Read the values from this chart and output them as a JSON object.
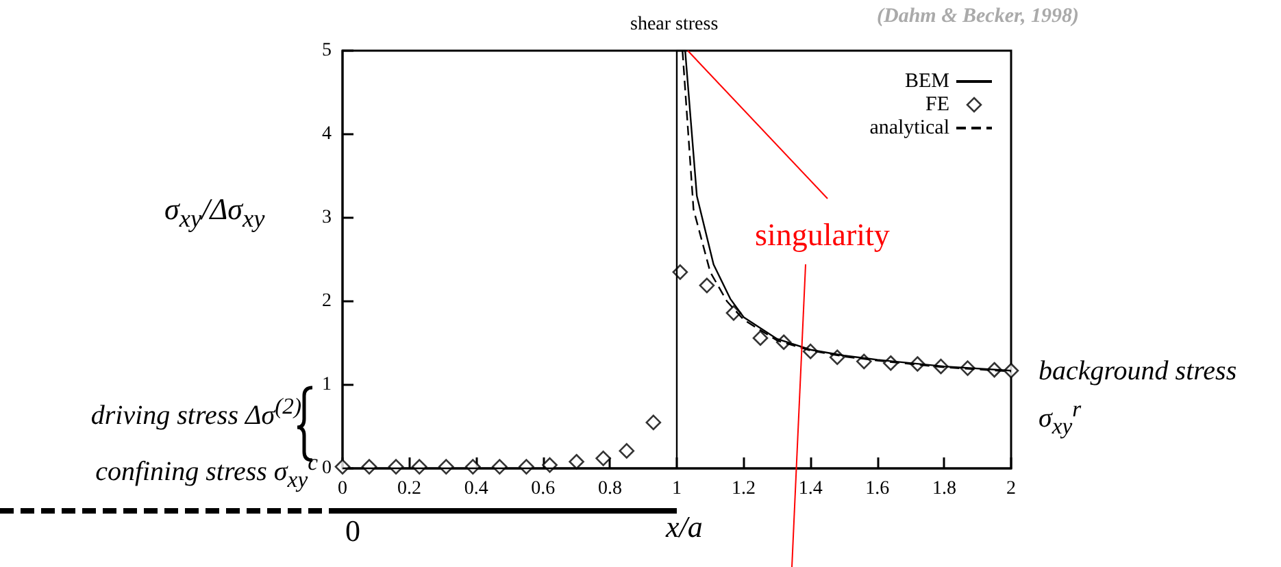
{
  "chart_data": {
    "type": "line",
    "title": "shear stress",
    "xlabel": "x/a",
    "ylabel": "σ$_{xy}$/Δσ$_{xy}$",
    "annotations": [
      "(Dahm & Becker, 1998)",
      {
        "text": "singularity",
        "x": 1,
        "y": 5
      },
      "driving stress Δσ$^{(2)}$",
      {
        "text": "confining stress σ$_{xy}$$^{c}$",
        "x": 0,
        "y": 0
      },
      {
        "text": "background stress σ$_{xy}$$^{r}$",
        "x": 2,
        "y": 1.17
      },
      "0"
    ],
    "xlim": [
      0,
      2
    ],
    "xticks": [
      0,
      0.2,
      0.4,
      0.6,
      0.8,
      1,
      1.2,
      1.4,
      1.6,
      1.8,
      2
    ],
    "ylim": [
      0,
      5
    ],
    "yticks": [
      0,
      1,
      2,
      3,
      4,
      5
    ],
    "grid": false,
    "legend": "top right",
    "series": [
      {
        "name": "BEM",
        "color": "#000000",
        "marker": "none",
        "line_style": "solid",
        "x": [
          0,
          1,
          1,
          1.025,
          1.06,
          1.11,
          1.16,
          1.2,
          1.3,
          1.4,
          1.5,
          1.6,
          1.8,
          2
        ],
        "values": [
          0,
          0,
          5,
          5,
          3.26,
          2.44,
          2.03,
          1.81,
          1.55,
          1.42,
          1.35,
          1.3,
          1.22,
          1.17
        ]
      },
      {
        "name": "FE",
        "type": "scatter",
        "color": "#000000",
        "marker": "diamond",
        "x": [
          0,
          0.08,
          0.16,
          0.23,
          0.31,
          0.39,
          0.47,
          0.55,
          0.62,
          0.7,
          0.78,
          0.85,
          0.93,
          1.01,
          1.09,
          1.17,
          1.25,
          1.32,
          1.4,
          1.48,
          1.56,
          1.64,
          1.72,
          1.79,
          1.87,
          1.95,
          2
        ],
        "values": [
          0.02,
          0.02,
          0.02,
          0.02,
          0.02,
          0.02,
          0.02,
          0.02,
          0.04,
          0.08,
          0.12,
          0.21,
          0.55,
          2.35,
          2.19,
          1.86,
          1.56,
          1.51,
          1.4,
          1.33,
          1.28,
          1.26,
          1.25,
          1.22,
          1.2,
          1.18,
          1.17
        ]
      },
      {
        "name": "analytical",
        "color": "#000000",
        "marker": "none",
        "line_style": "dashed",
        "x": [
          1.017,
          1.05,
          1.1,
          1.15,
          1.2,
          1.3,
          1.4,
          1.5,
          1.6,
          1.8,
          2
        ],
        "values": [
          5,
          3.1,
          2.35,
          2.0,
          1.78,
          1.53,
          1.41,
          1.34,
          1.29,
          1.21,
          1.16
        ]
      }
    ]
  }
}
